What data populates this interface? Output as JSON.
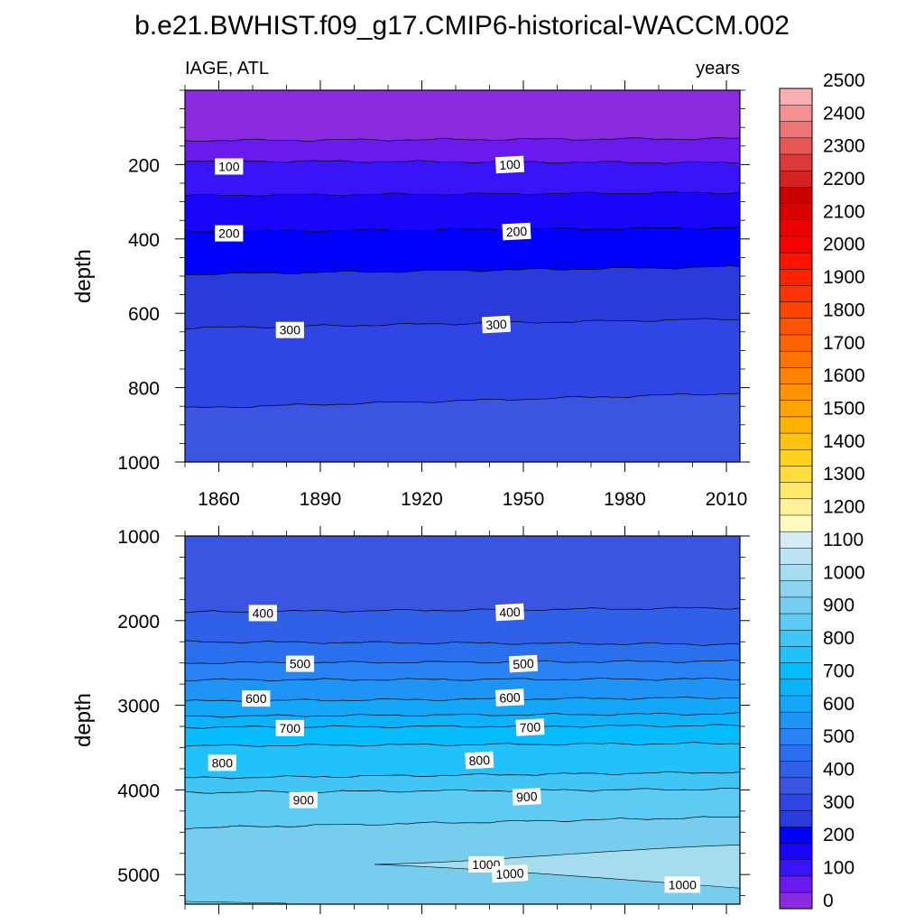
{
  "figure": {
    "title": "b.e21.BWHIST.f09_g17.CMIP6-historical-WACCM.002",
    "left_label": "IAGE, ATL",
    "right_label": "years"
  },
  "chart_data": [
    {
      "type": "contour",
      "panel": "upper",
      "xlabel": "",
      "ylabel": "depth",
      "xlim": [
        1850,
        2014
      ],
      "ylim": [
        1000,
        0
      ],
      "xticks": [
        1860,
        1890,
        1920,
        1950,
        1980,
        2010
      ],
      "yticks": [
        200,
        400,
        600,
        800,
        1000
      ],
      "contours": [
        {
          "level": 50,
          "depth_left": 135,
          "depth_right": 130
        },
        {
          "level": 100,
          "depth_left": 190,
          "depth_right": 195
        },
        {
          "level": 150,
          "depth_left": 283,
          "depth_right": 275
        },
        {
          "level": 200,
          "depth_left": 380,
          "depth_right": 370
        },
        {
          "level": 250,
          "depth_left": 495,
          "depth_right": 475
        },
        {
          "level": 300,
          "depth_left": 640,
          "depth_right": 615
        },
        {
          "level": 350,
          "depth_left": 855,
          "depth_right": 815
        }
      ],
      "contour_labels": [
        {
          "text": "100",
          "x": 1863,
          "depth": 205
        },
        {
          "text": "100",
          "x": 1946,
          "depth": 200
        },
        {
          "text": "200",
          "x": 1863,
          "depth": 385
        },
        {
          "text": "200",
          "x": 1948,
          "depth": 380
        },
        {
          "text": "300",
          "x": 1881,
          "depth": 645
        },
        {
          "text": "300",
          "x": 1942,
          "depth": 630
        }
      ]
    },
    {
      "type": "contour",
      "panel": "lower",
      "xlabel": "",
      "ylabel": "depth",
      "xlim": [
        1850,
        2014
      ],
      "ylim": [
        5350,
        1000
      ],
      "xticks": [
        1860,
        1890,
        1920,
        1950,
        1980,
        2010
      ],
      "yticks": [
        1000,
        2000,
        3000,
        4000,
        5000
      ],
      "contours": [
        {
          "level": 400,
          "depth_left": 1900,
          "depth_right": 1850
        },
        {
          "level": 450,
          "depth_left": 2250,
          "depth_right": 2280
        },
        {
          "level": 500,
          "depth_left": 2500,
          "depth_right": 2480
        },
        {
          "level": 550,
          "depth_left": 2700,
          "depth_right": 2690
        },
        {
          "level": 600,
          "depth_left": 2950,
          "depth_right": 2910
        },
        {
          "level": 650,
          "depth_left": 3130,
          "depth_right": 3100
        },
        {
          "level": 700,
          "depth_left": 3260,
          "depth_right": 3240
        },
        {
          "level": 750,
          "depth_left": 3480,
          "depth_right": 3450
        },
        {
          "level": 800,
          "depth_left": 3860,
          "depth_right": 3790
        },
        {
          "level": 850,
          "depth_left": 4030,
          "depth_right": 3990
        },
        {
          "level": 900,
          "depth_left": 4450,
          "depth_right": 4320
        }
      ],
      "contour_labels": [
        {
          "text": "400",
          "x": 1873,
          "depth": 1910
        },
        {
          "text": "400",
          "x": 1946,
          "depth": 1900
        },
        {
          "text": "500",
          "x": 1884,
          "depth": 2510
        },
        {
          "text": "500",
          "x": 1950,
          "depth": 2510
        },
        {
          "text": "600",
          "x": 1871,
          "depth": 2920
        },
        {
          "text": "600",
          "x": 1946,
          "depth": 2910
        },
        {
          "text": "700",
          "x": 1881,
          "depth": 3270
        },
        {
          "text": "700",
          "x": 1952,
          "depth": 3260
        },
        {
          "text": "800",
          "x": 1861,
          "depth": 3680
        },
        {
          "text": "800",
          "x": 1937,
          "depth": 3650
        },
        {
          "text": "900",
          "x": 1885,
          "depth": 4120
        },
        {
          "text": "900",
          "x": 1951,
          "depth": 4080
        },
        {
          "text": "1000",
          "x": 1939,
          "depth": 4880
        },
        {
          "text": "1000",
          "x": 1946,
          "depth": 4990
        },
        {
          "text": "1000",
          "x": 1997,
          "depth": 5120
        }
      ],
      "region_1000_plus": {
        "start_year": 1906,
        "start_depth": 4880,
        "top_right_depth": 4650,
        "bottom_right_depth": 5160
      }
    }
  ],
  "colorbar": {
    "levels": [
      0,
      50,
      100,
      150,
      200,
      250,
      300,
      350,
      400,
      450,
      500,
      550,
      600,
      650,
      700,
      750,
      800,
      850,
      900,
      950,
      1000,
      1050,
      1100,
      1150,
      1200,
      1250,
      1300,
      1350,
      1400,
      1450,
      1500,
      1550,
      1600,
      1650,
      1700,
      1750,
      1800,
      1850,
      1900,
      1950,
      2000,
      2050,
      2100,
      2150,
      2200,
      2250,
      2300,
      2350,
      2400,
      2450,
      2500
    ],
    "tick_labels": [
      "0",
      "100",
      "200",
      "300",
      "400",
      "500",
      "600",
      "700",
      "800",
      "900",
      "1000",
      "1100",
      "1200",
      "1300",
      "1400",
      "1500",
      "1600",
      "1700",
      "1800",
      "1900",
      "2000",
      "2100",
      "2200",
      "2300",
      "2400",
      "2500"
    ],
    "colors": [
      "#8a2be2",
      "#6a1aef",
      "#3a14f8",
      "#1a05fb",
      "#0000ff",
      "#2a3bdc",
      "#2f45e6",
      "#3b55e2",
      "#3060e8",
      "#2a70ee",
      "#2884f4",
      "#1e95f6",
      "#14a6f8",
      "#0bb3fb",
      "#04bcfd",
      "#21c2fb",
      "#41c5f5",
      "#5ecbf2",
      "#76cdee",
      "#8dd3ef",
      "#a6dcef",
      "#bde4f2",
      "#d4ecf7",
      "#fffbc0",
      "#fff29a",
      "#ffe96b",
      "#ffdc3e",
      "#ffd01d",
      "#ffc20c",
      "#ffb300",
      "#ffa300",
      "#ff9300",
      "#ff8300",
      "#ff7300",
      "#ff6300",
      "#ff5300",
      "#ff4300",
      "#ff3300",
      "#ff2300",
      "#ff1300",
      "#fb0000",
      "#eb0000",
      "#db0000",
      "#cb0000",
      "#d42222",
      "#dc3a3a",
      "#e45858",
      "#ec7575",
      "#f49292",
      "#fab0b0"
    ]
  }
}
